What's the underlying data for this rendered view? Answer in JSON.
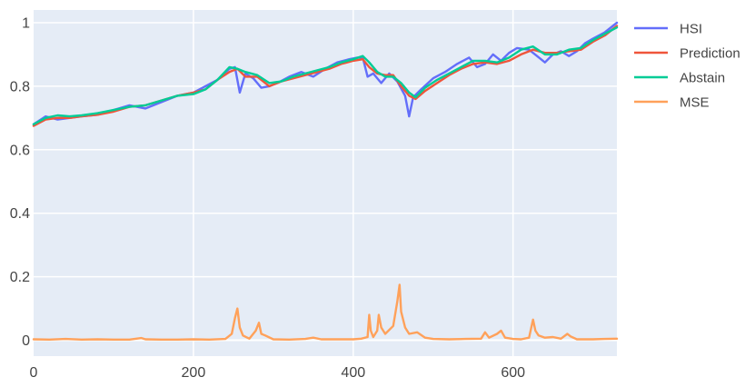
{
  "chart_data": {
    "type": "line",
    "title": "",
    "xlabel": "",
    "ylabel": "",
    "xlim": [
      0,
      730
    ],
    "ylim": [
      -0.05,
      1.04
    ],
    "x_ticks": [
      0,
      200,
      400,
      600
    ],
    "y_ticks": [
      0,
      0.2,
      0.4,
      0.6,
      0.8,
      1
    ],
    "x_tick_labels": [
      "0",
      "200",
      "400",
      "600"
    ],
    "y_tick_labels": [
      "0",
      "0.2",
      "0.4",
      "0.6",
      "0.8",
      "1"
    ],
    "grid": true,
    "legend_position": "top-right",
    "plot_background": "#E5ECF6",
    "series": [
      {
        "name": "HSI",
        "color": "#636EFA",
        "x": [
          0,
          15,
          30,
          45,
          60,
          80,
          100,
          120,
          140,
          160,
          180,
          200,
          215,
          230,
          245,
          252,
          258,
          265,
          275,
          285,
          295,
          305,
          320,
          335,
          350,
          365,
          380,
          395,
          405,
          412,
          418,
          425,
          435,
          445,
          455,
          465,
          470,
          475,
          485,
          500,
          515,
          530,
          545,
          555,
          565,
          575,
          585,
          595,
          605,
          620,
          630,
          640,
          650,
          660,
          670,
          680,
          690,
          700,
          715,
          730
        ],
        "y": [
          0.68,
          0.705,
          0.695,
          0.7,
          0.705,
          0.71,
          0.725,
          0.74,
          0.73,
          0.75,
          0.77,
          0.78,
          0.8,
          0.82,
          0.855,
          0.86,
          0.78,
          0.84,
          0.825,
          0.795,
          0.8,
          0.81,
          0.83,
          0.845,
          0.83,
          0.855,
          0.875,
          0.885,
          0.89,
          0.89,
          0.83,
          0.84,
          0.81,
          0.84,
          0.815,
          0.77,
          0.705,
          0.765,
          0.79,
          0.825,
          0.845,
          0.87,
          0.89,
          0.86,
          0.87,
          0.9,
          0.88,
          0.905,
          0.92,
          0.915,
          0.895,
          0.875,
          0.9,
          0.91,
          0.895,
          0.91,
          0.935,
          0.95,
          0.97,
          1.0
        ]
      },
      {
        "name": "Prediction",
        "color": "#EF553B",
        "x": [
          0,
          15,
          30,
          45,
          60,
          80,
          100,
          120,
          140,
          160,
          180,
          200,
          215,
          230,
          245,
          255,
          265,
          280,
          295,
          310,
          325,
          340,
          355,
          370,
          385,
          400,
          412,
          420,
          430,
          440,
          450,
          460,
          470,
          478,
          490,
          505,
          520,
          535,
          550,
          565,
          580,
          595,
          610,
          625,
          640,
          655,
          670,
          685,
          700,
          715,
          730
        ],
        "y": [
          0.675,
          0.695,
          0.7,
          0.7,
          0.705,
          0.71,
          0.72,
          0.735,
          0.74,
          0.755,
          0.77,
          0.78,
          0.79,
          0.82,
          0.845,
          0.855,
          0.83,
          0.83,
          0.8,
          0.815,
          0.825,
          0.835,
          0.845,
          0.855,
          0.87,
          0.88,
          0.885,
          0.86,
          0.84,
          0.835,
          0.835,
          0.8,
          0.77,
          0.76,
          0.785,
          0.81,
          0.835,
          0.855,
          0.87,
          0.875,
          0.87,
          0.88,
          0.9,
          0.915,
          0.905,
          0.905,
          0.91,
          0.915,
          0.94,
          0.96,
          0.99
        ]
      },
      {
        "name": "Abstain",
        "color": "#00CC96",
        "x": [
          0,
          15,
          30,
          45,
          60,
          80,
          100,
          120,
          140,
          160,
          180,
          200,
          215,
          230,
          245,
          255,
          265,
          280,
          295,
          310,
          325,
          340,
          355,
          370,
          385,
          400,
          412,
          420,
          430,
          440,
          450,
          460,
          470,
          478,
          490,
          505,
          520,
          535,
          550,
          565,
          580,
          595,
          610,
          625,
          640,
          655,
          670,
          685,
          700,
          715,
          730
        ],
        "y": [
          0.68,
          0.7,
          0.708,
          0.705,
          0.708,
          0.715,
          0.725,
          0.735,
          0.74,
          0.755,
          0.77,
          0.775,
          0.79,
          0.82,
          0.86,
          0.855,
          0.845,
          0.835,
          0.81,
          0.815,
          0.83,
          0.84,
          0.85,
          0.86,
          0.875,
          0.885,
          0.895,
          0.875,
          0.845,
          0.83,
          0.83,
          0.81,
          0.78,
          0.765,
          0.795,
          0.82,
          0.84,
          0.86,
          0.88,
          0.88,
          0.875,
          0.89,
          0.915,
          0.925,
          0.9,
          0.9,
          0.915,
          0.92,
          0.945,
          0.965,
          0.985
        ]
      },
      {
        "name": "MSE",
        "color": "#FFA15A",
        "x": [
          0,
          20,
          40,
          60,
          80,
          100,
          120,
          135,
          140,
          160,
          180,
          200,
          220,
          240,
          248,
          252,
          255,
          258,
          262,
          270,
          278,
          282,
          285,
          290,
          300,
          320,
          340,
          350,
          360,
          380,
          400,
          410,
          418,
          420,
          422,
          425,
          430,
          432,
          435,
          440,
          450,
          455,
          458,
          460,
          465,
          470,
          480,
          490,
          500,
          520,
          540,
          560,
          565,
          570,
          580,
          585,
          590,
          600,
          610,
          620,
          625,
          628,
          632,
          640,
          650,
          660,
          668,
          672,
          680,
          700,
          715,
          730
        ],
        "y": [
          0.003,
          0.002,
          0.004,
          0.002,
          0.003,
          0.002,
          0.002,
          0.007,
          0.003,
          0.002,
          0.002,
          0.003,
          0.002,
          0.004,
          0.02,
          0.07,
          0.1,
          0.04,
          0.015,
          0.005,
          0.03,
          0.055,
          0.02,
          0.015,
          0.003,
          0.002,
          0.004,
          0.008,
          0.003,
          0.003,
          0.003,
          0.005,
          0.01,
          0.08,
          0.03,
          0.01,
          0.03,
          0.08,
          0.04,
          0.02,
          0.045,
          0.12,
          0.175,
          0.09,
          0.04,
          0.02,
          0.025,
          0.008,
          0.004,
          0.003,
          0.004,
          0.005,
          0.025,
          0.008,
          0.02,
          0.03,
          0.008,
          0.004,
          0.003,
          0.008,
          0.065,
          0.03,
          0.015,
          0.008,
          0.01,
          0.005,
          0.02,
          0.012,
          0.003,
          0.003,
          0.004,
          0.005
        ]
      }
    ]
  }
}
